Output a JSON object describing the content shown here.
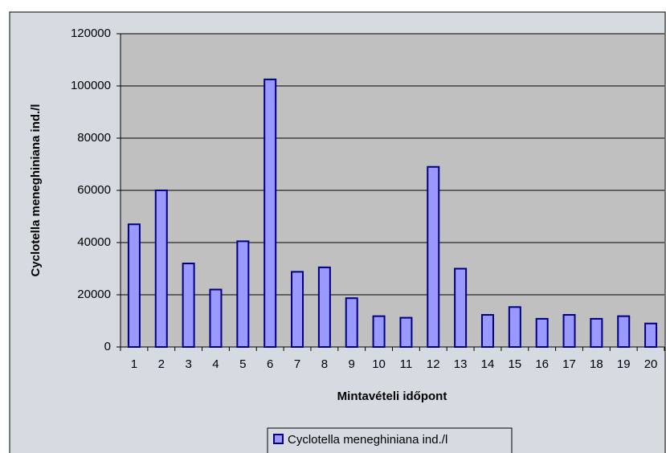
{
  "chart_data": {
    "type": "bar",
    "y_label": "Cyclotella meneghiniana ind./l",
    "x_label": "Mintavételi időpont",
    "categories": [
      "1",
      "2",
      "3",
      "4",
      "5",
      "6",
      "7",
      "8",
      "9",
      "10",
      "11",
      "12",
      "13",
      "14",
      "15",
      "16",
      "17",
      "18",
      "19",
      "20"
    ],
    "series": [
      {
        "name": "Cyclotella meneghiniana ind./l",
        "color": "#9999ff",
        "values": [
          47000,
          60000,
          32000,
          22000,
          40500,
          102500,
          28800,
          30500,
          18700,
          11800,
          11200,
          69000,
          30000,
          12300,
          15300,
          10800,
          12300,
          10800,
          11800,
          9000
        ]
      }
    ],
    "ylim": [
      0,
      120000
    ],
    "yticks": [
      0,
      20000,
      40000,
      60000,
      80000,
      100000,
      120000
    ],
    "grid": true,
    "legend": "bottom"
  }
}
